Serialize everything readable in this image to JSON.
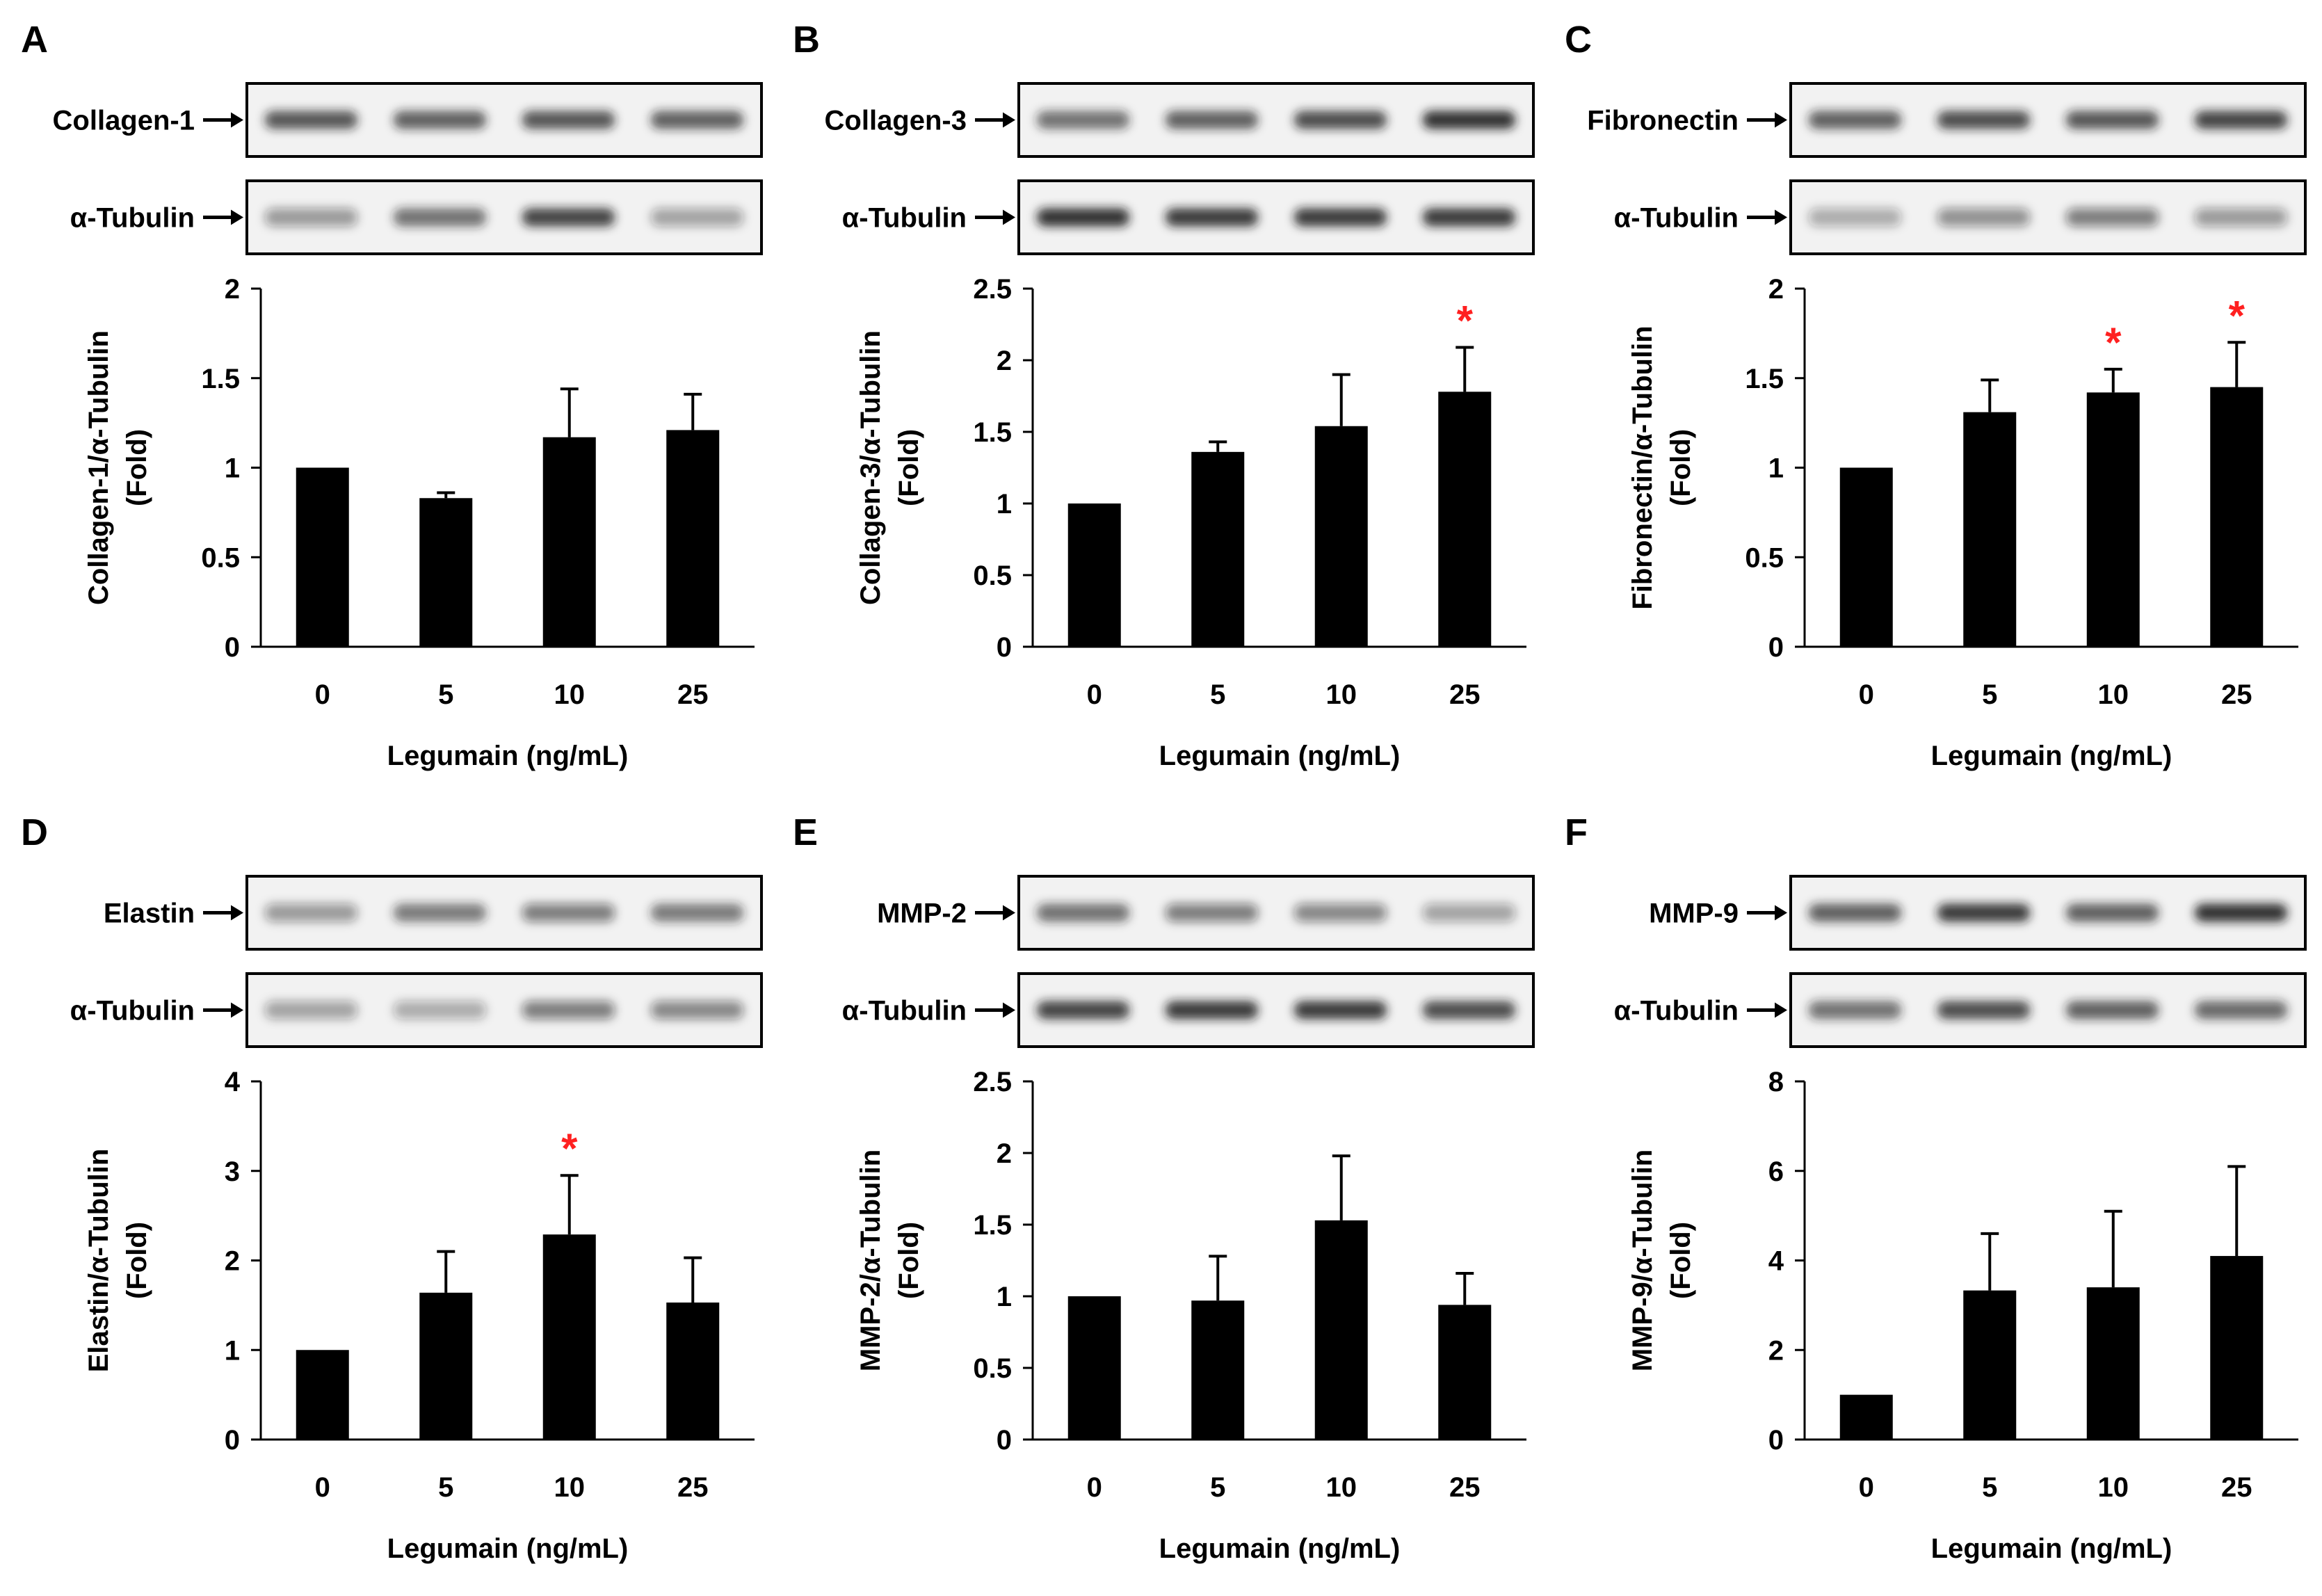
{
  "colors": {
    "bar": "#000000",
    "significance": "#ff2020",
    "axis": "#000000",
    "blot_background": "#f2f2f2",
    "band": "#1a1a1a"
  },
  "chart_data": [
    {
      "panel": "A",
      "type": "bar",
      "protein": "Collagen-1",
      "loading_control": "α-Tubulin",
      "categories": [
        "0",
        "5",
        "10",
        "25"
      ],
      "values": [
        1.0,
        0.83,
        1.17,
        1.21
      ],
      "errors": [
        0.0,
        0.03,
        0.27,
        0.2
      ],
      "significant": [
        false,
        false,
        false,
        false
      ],
      "ylabel": [
        "Collagen-1/α-Tubulin",
        "(Fold)"
      ],
      "xlabel": "Legumain (ng/mL)",
      "ylim": [
        0,
        2
      ],
      "yticks": [
        0,
        0.5,
        1,
        1.5,
        2
      ],
      "ytick_labels": [
        "0",
        "0.5",
        "1",
        "1.5",
        "2"
      ],
      "blot_intensity": {
        "protein": [
          0.75,
          0.7,
          0.75,
          0.7
        ],
        "control": [
          0.35,
          0.6,
          0.85,
          0.3
        ]
      }
    },
    {
      "panel": "B",
      "type": "bar",
      "protein": "Collagen-3",
      "loading_control": "α-Tubulin",
      "categories": [
        "0",
        "5",
        "10",
        "25"
      ],
      "values": [
        1.0,
        1.36,
        1.54,
        1.78
      ],
      "errors": [
        0.0,
        0.07,
        0.36,
        0.31
      ],
      "significant": [
        false,
        false,
        false,
        true
      ],
      "ylabel": [
        "Collagen-3/α-Tubulin",
        "(Fold)"
      ],
      "xlabel": "Legumain (ng/mL)",
      "ylim": [
        0,
        2.5
      ],
      "yticks": [
        0,
        0.5,
        1,
        1.5,
        2,
        2.5
      ],
      "ytick_labels": [
        "0",
        "0.5",
        "1",
        "1.5",
        "2",
        "2.5"
      ],
      "blot_intensity": {
        "protein": [
          0.6,
          0.7,
          0.8,
          0.95
        ],
        "control": [
          0.95,
          0.9,
          0.9,
          0.9
        ]
      }
    },
    {
      "panel": "C",
      "type": "bar",
      "protein": "Fibronectin",
      "loading_control": "α-Tubulin",
      "categories": [
        "0",
        "5",
        "10",
        "25"
      ],
      "values": [
        1.0,
        1.31,
        1.42,
        1.45
      ],
      "errors": [
        0.0,
        0.18,
        0.13,
        0.25
      ],
      "significant": [
        false,
        false,
        true,
        true
      ],
      "ylabel": [
        "Fibronectin/α-Tubulin",
        "(Fold)"
      ],
      "xlabel": "Legumain (ng/mL)",
      "ylim": [
        0,
        2
      ],
      "yticks": [
        0,
        0.5,
        1,
        1.5,
        2
      ],
      "ytick_labels": [
        "0",
        "0.5",
        "1",
        "1.5",
        "2"
      ],
      "blot_intensity": {
        "protein": [
          0.7,
          0.8,
          0.75,
          0.85
        ],
        "control": [
          0.25,
          0.4,
          0.5,
          0.35
        ]
      }
    },
    {
      "panel": "D",
      "type": "bar",
      "protein": "Elastin",
      "loading_control": "α-Tubulin",
      "categories": [
        "0",
        "5",
        "10",
        "25"
      ],
      "values": [
        1.0,
        1.64,
        2.29,
        1.53
      ],
      "errors": [
        0.0,
        0.46,
        0.66,
        0.5
      ],
      "significant": [
        false,
        false,
        true,
        false
      ],
      "ylabel": [
        "Elastin/α-Tubulin",
        "(Fold)"
      ],
      "xlabel": "Legumain (ng/mL)",
      "ylim": [
        0,
        4
      ],
      "yticks": [
        0,
        1,
        2,
        3,
        4
      ],
      "ytick_labels": [
        "0",
        "1",
        "2",
        "3",
        "4"
      ],
      "blot_intensity": {
        "protein": [
          0.35,
          0.55,
          0.5,
          0.55
        ],
        "control": [
          0.3,
          0.25,
          0.5,
          0.45
        ]
      }
    },
    {
      "panel": "E",
      "type": "bar",
      "protein": "MMP-2",
      "loading_control": "α-Tubulin",
      "categories": [
        "0",
        "5",
        "10",
        "25"
      ],
      "values": [
        1.0,
        0.97,
        1.53,
        0.94
      ],
      "errors": [
        0.0,
        0.31,
        0.45,
        0.22
      ],
      "significant": [
        false,
        false,
        false,
        false
      ],
      "ylabel": [
        "MMP-2/α-Tubulin",
        "(Fold)"
      ],
      "xlabel": "Legumain (ng/mL)",
      "ylim": [
        0,
        2.5
      ],
      "yticks": [
        0,
        0.5,
        1,
        1.5,
        2,
        2.5
      ],
      "ytick_labels": [
        "0",
        "0.5",
        "1",
        "1.5",
        "2",
        "2.5"
      ],
      "blot_intensity": {
        "protein": [
          0.6,
          0.5,
          0.45,
          0.3
        ],
        "control": [
          0.85,
          0.9,
          0.9,
          0.8
        ]
      }
    },
    {
      "panel": "F",
      "type": "bar",
      "protein": "MMP-9",
      "loading_control": "α-Tubulin",
      "categories": [
        "0",
        "5",
        "10",
        "25"
      ],
      "values": [
        1.0,
        3.33,
        3.4,
        4.1
      ],
      "errors": [
        0.0,
        1.27,
        1.7,
        2.0
      ],
      "significant": [
        false,
        false,
        false,
        false
      ],
      "ylabel": [
        "MMP-9/α-Tubulin",
        "(Fold)"
      ],
      "xlabel": "Legumain (ng/mL)",
      "ylim": [
        0,
        8
      ],
      "yticks": [
        0,
        2,
        4,
        6,
        8
      ],
      "ytick_labels": [
        "0",
        "2",
        "4",
        "6",
        "8"
      ],
      "blot_intensity": {
        "protein": [
          0.7,
          0.9,
          0.7,
          0.95
        ],
        "control": [
          0.6,
          0.8,
          0.7,
          0.65
        ]
      }
    }
  ]
}
